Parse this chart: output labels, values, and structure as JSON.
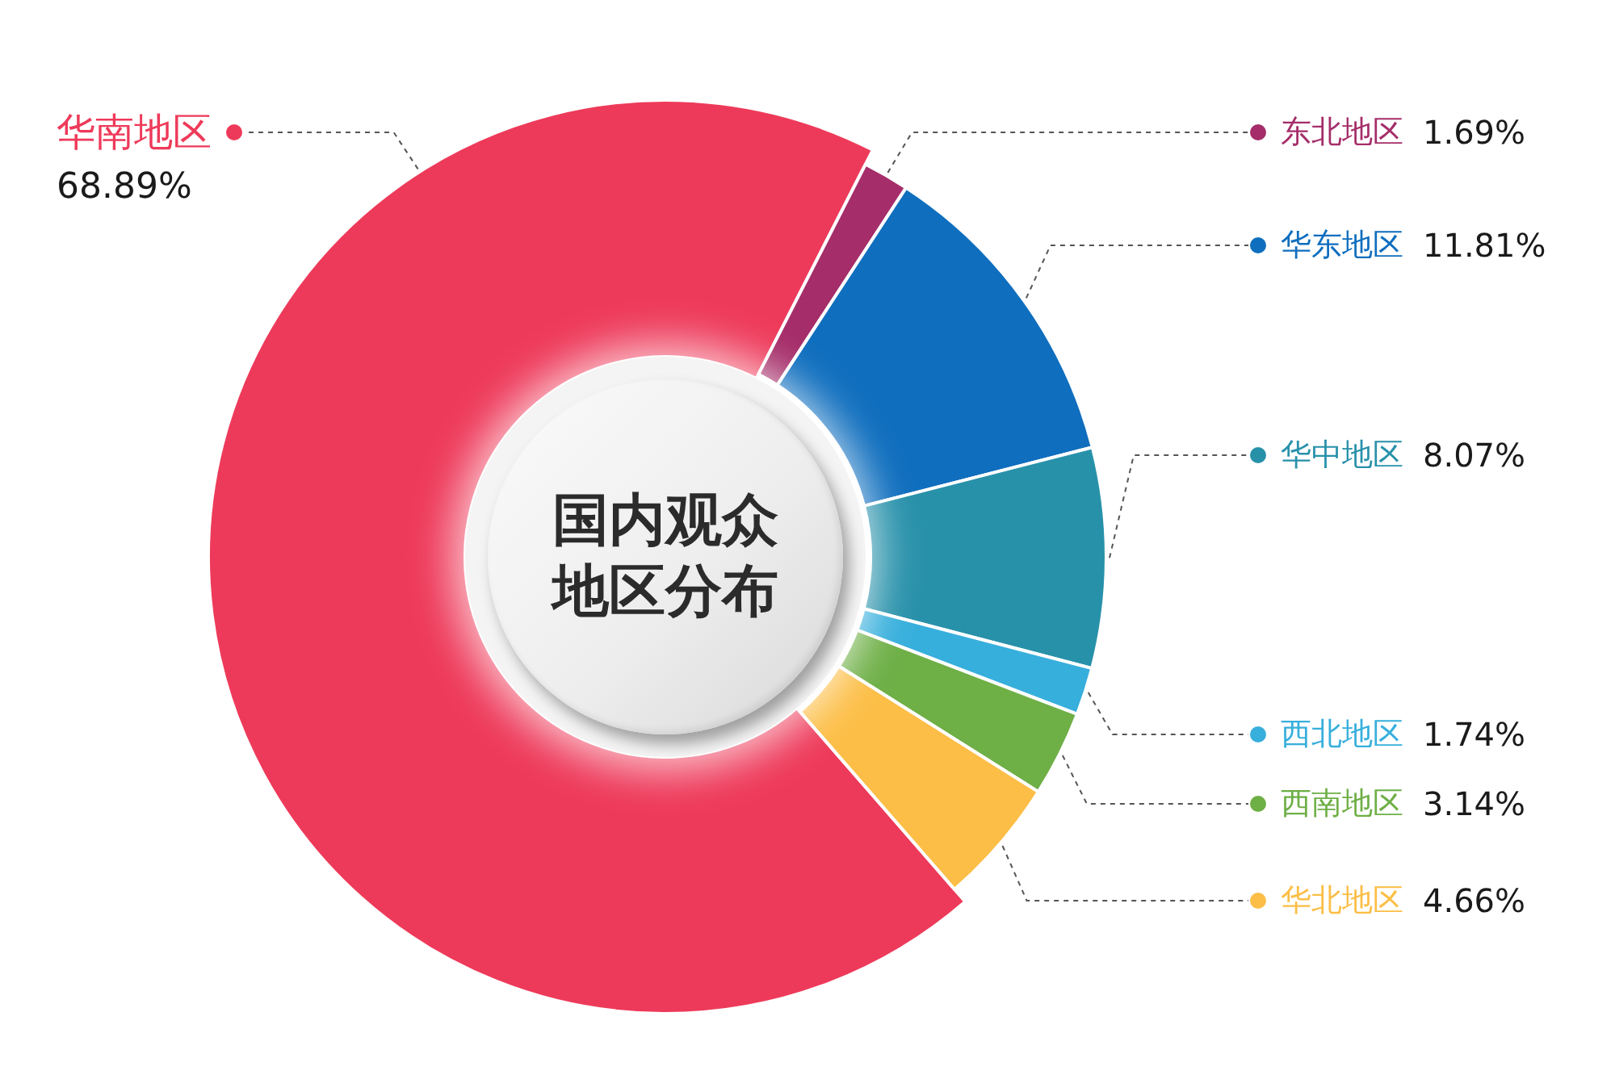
{
  "chart_data": {
    "type": "donut",
    "title": "国内观众地区分布",
    "categories": [
      "华南地区",
      "东北地区",
      "华东地区",
      "华中地区",
      "西北地区",
      "西南地区",
      "华北地区"
    ],
    "values": [
      68.89,
      1.69,
      11.81,
      8.07,
      1.74,
      3.14,
      4.66
    ],
    "colors": [
      "#ee3a5a",
      "#a52d69",
      "#0f6ebe",
      "#2891aa",
      "#37afdc",
      "#6eaf46",
      "#fcbe46"
    ],
    "value_labels": [
      "68.89%",
      "1.69%",
      "11.81%",
      "8.07%",
      "1.74%",
      "3.14%",
      "4.66%"
    ],
    "legend": "right"
  }
}
